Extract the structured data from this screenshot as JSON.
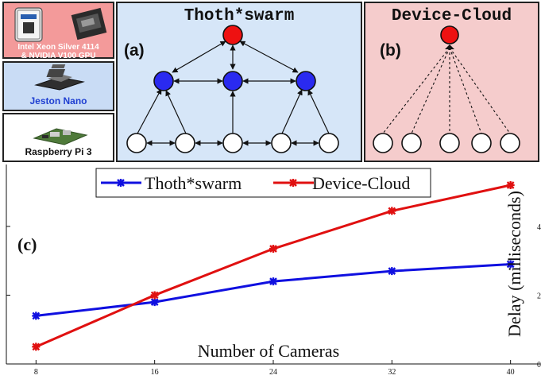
{
  "hardware": {
    "server_label_line1": "Intel Xeon Silver 4114",
    "server_label_line2": "& NVIDIA V100 GPU",
    "edge_label": "Jeston Nano",
    "device_label": "Raspberry Pi 3",
    "colors": {
      "server_bg": "#f39a9a",
      "edge_bg": "#c9dcf5",
      "device_bg": "#ffffff",
      "edge_text": "#1f3fd1",
      "server_text": "#ffffff"
    }
  },
  "panel_a": {
    "title": "Thoth*swarm",
    "tag": "(a)",
    "bg": "#d6e6f8"
  },
  "panel_b": {
    "title": "Device-Cloud",
    "tag": "(b)",
    "bg": "#f5cccc"
  },
  "node_colors": {
    "cloud": "#ee1111",
    "edge": "#2a2af0",
    "device": "#ffffff"
  },
  "chart_data": {
    "type": "line",
    "tag": "(c)",
    "x": [
      8,
      16,
      24,
      32,
      40
    ],
    "xlabel": "Number of Cameras",
    "ylabel": "Delay (milliseconds)",
    "x_tick_labels": [
      "8",
      "16",
      "24",
      "32",
      "40"
    ],
    "y_tick_labels": [
      "0",
      "2",
      "4"
    ],
    "legend": {
      "placement": "top-center",
      "entries": [
        "Thoth*swarm",
        "Device-Cloud"
      ]
    },
    "series": [
      {
        "name": "Thoth*swarm",
        "color": "#1010e0",
        "values": [
          1.4,
          1.8,
          2.4,
          2.7,
          2.9
        ]
      },
      {
        "name": "Device-Cloud",
        "color": "#e01010",
        "values": [
          0.5,
          2.0,
          3.35,
          4.45,
          5.2
        ]
      }
    ]
  }
}
